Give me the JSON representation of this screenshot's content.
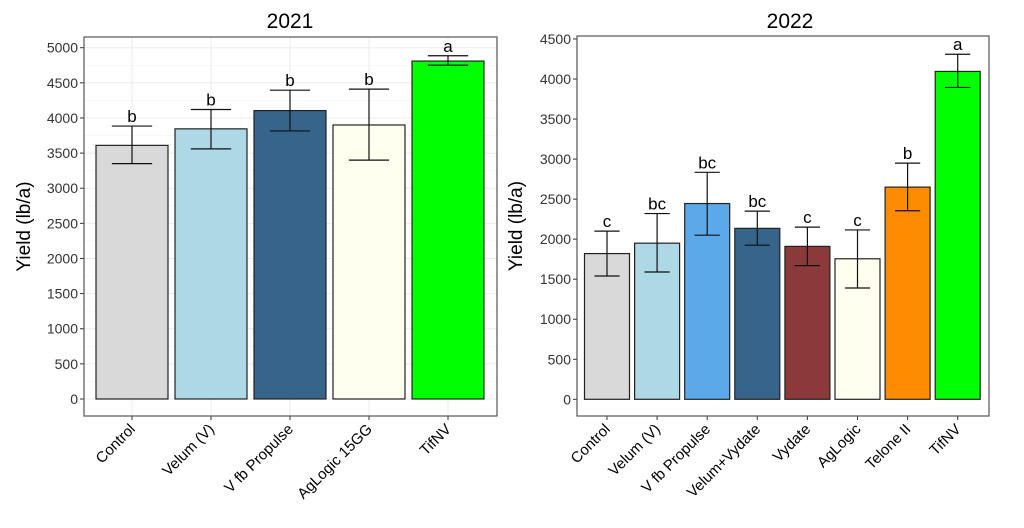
{
  "chart_data": [
    {
      "type": "bar",
      "title": "2021",
      "ylabel": "Yield (lb/a)",
      "xlabel": "",
      "ylim": [
        0,
        5000
      ],
      "yticks": [
        0,
        500,
        1000,
        1500,
        2000,
        2500,
        3000,
        3500,
        4000,
        4500,
        5000
      ],
      "grid": true,
      "categories": [
        "Control",
        "Velum (V)",
        "V fb Propulse",
        "AgLogic 15GG",
        "TifNV"
      ],
      "values": [
        3610,
        3845,
        4105,
        3900,
        4810
      ],
      "error_low": [
        3350,
        3560,
        3815,
        3400,
        4750
      ],
      "error_high": [
        3885,
        4120,
        4395,
        4410,
        4885
      ],
      "letters": [
        "b",
        "b",
        "b",
        "b",
        "a"
      ],
      "colors": [
        "#d9d9d9",
        "#add8e6",
        "#36648b",
        "#fffff0",
        "#00ff00"
      ]
    },
    {
      "type": "bar",
      "title": "2022",
      "ylabel": "Yield (lb/a)",
      "xlabel": "",
      "ylim": [
        0,
        4500
      ],
      "yticks": [
        0,
        500,
        1000,
        1500,
        2000,
        2500,
        3000,
        3500,
        4000,
        4500
      ],
      "grid": false,
      "categories": [
        "Control",
        "Velum (V)",
        "V fb Propulse",
        "Velum+Vydate",
        "Vydate",
        "AgLogic",
        "Telone II",
        "TifNV"
      ],
      "values": [
        1820,
        1950,
        2445,
        2135,
        1910,
        1755,
        2650,
        4095
      ],
      "error_low": [
        1540,
        1590,
        2050,
        1925,
        1670,
        1390,
        2355,
        3895
      ],
      "error_high": [
        2100,
        2320,
        2835,
        2350,
        2150,
        2115,
        2950,
        4310
      ],
      "letters": [
        "c",
        "bc",
        "bc",
        "bc",
        "c",
        "c",
        "b",
        "a"
      ],
      "colors": [
        "#d9d9d9",
        "#add8e6",
        "#5ca9ea",
        "#36648b",
        "#8b3a3a",
        "#fffff0",
        "#ff8c00",
        "#00ff00"
      ]
    }
  ]
}
